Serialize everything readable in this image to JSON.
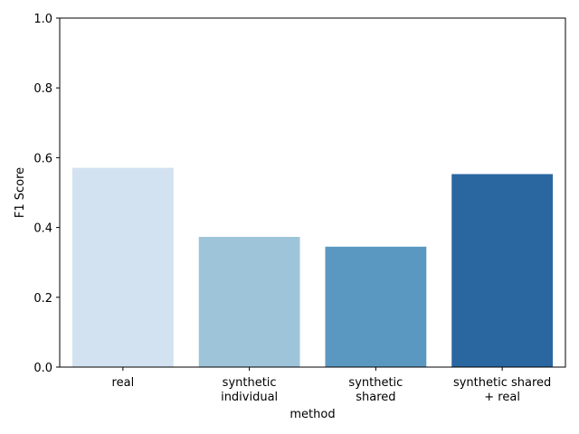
{
  "chart_data": {
    "type": "bar",
    "title": "",
    "xlabel": "method",
    "ylabel": "F1 Score",
    "ylim": [
      0,
      1
    ],
    "yticks": [
      "0.0",
      "0.2",
      "0.4",
      "0.6",
      "0.8",
      "1.0"
    ],
    "grid": false,
    "legend": "none",
    "categories": [
      [
        "real"
      ],
      [
        "synthetic",
        "individual"
      ],
      [
        "synthetic",
        "shared"
      ],
      [
        "synthetic shared",
        "+ real"
      ]
    ],
    "values": [
      0.571,
      0.373,
      0.345,
      0.553
    ],
    "colors": [
      "#d3e2f0",
      "#9ec4da",
      "#5a98c1",
      "#2a67a1"
    ]
  }
}
